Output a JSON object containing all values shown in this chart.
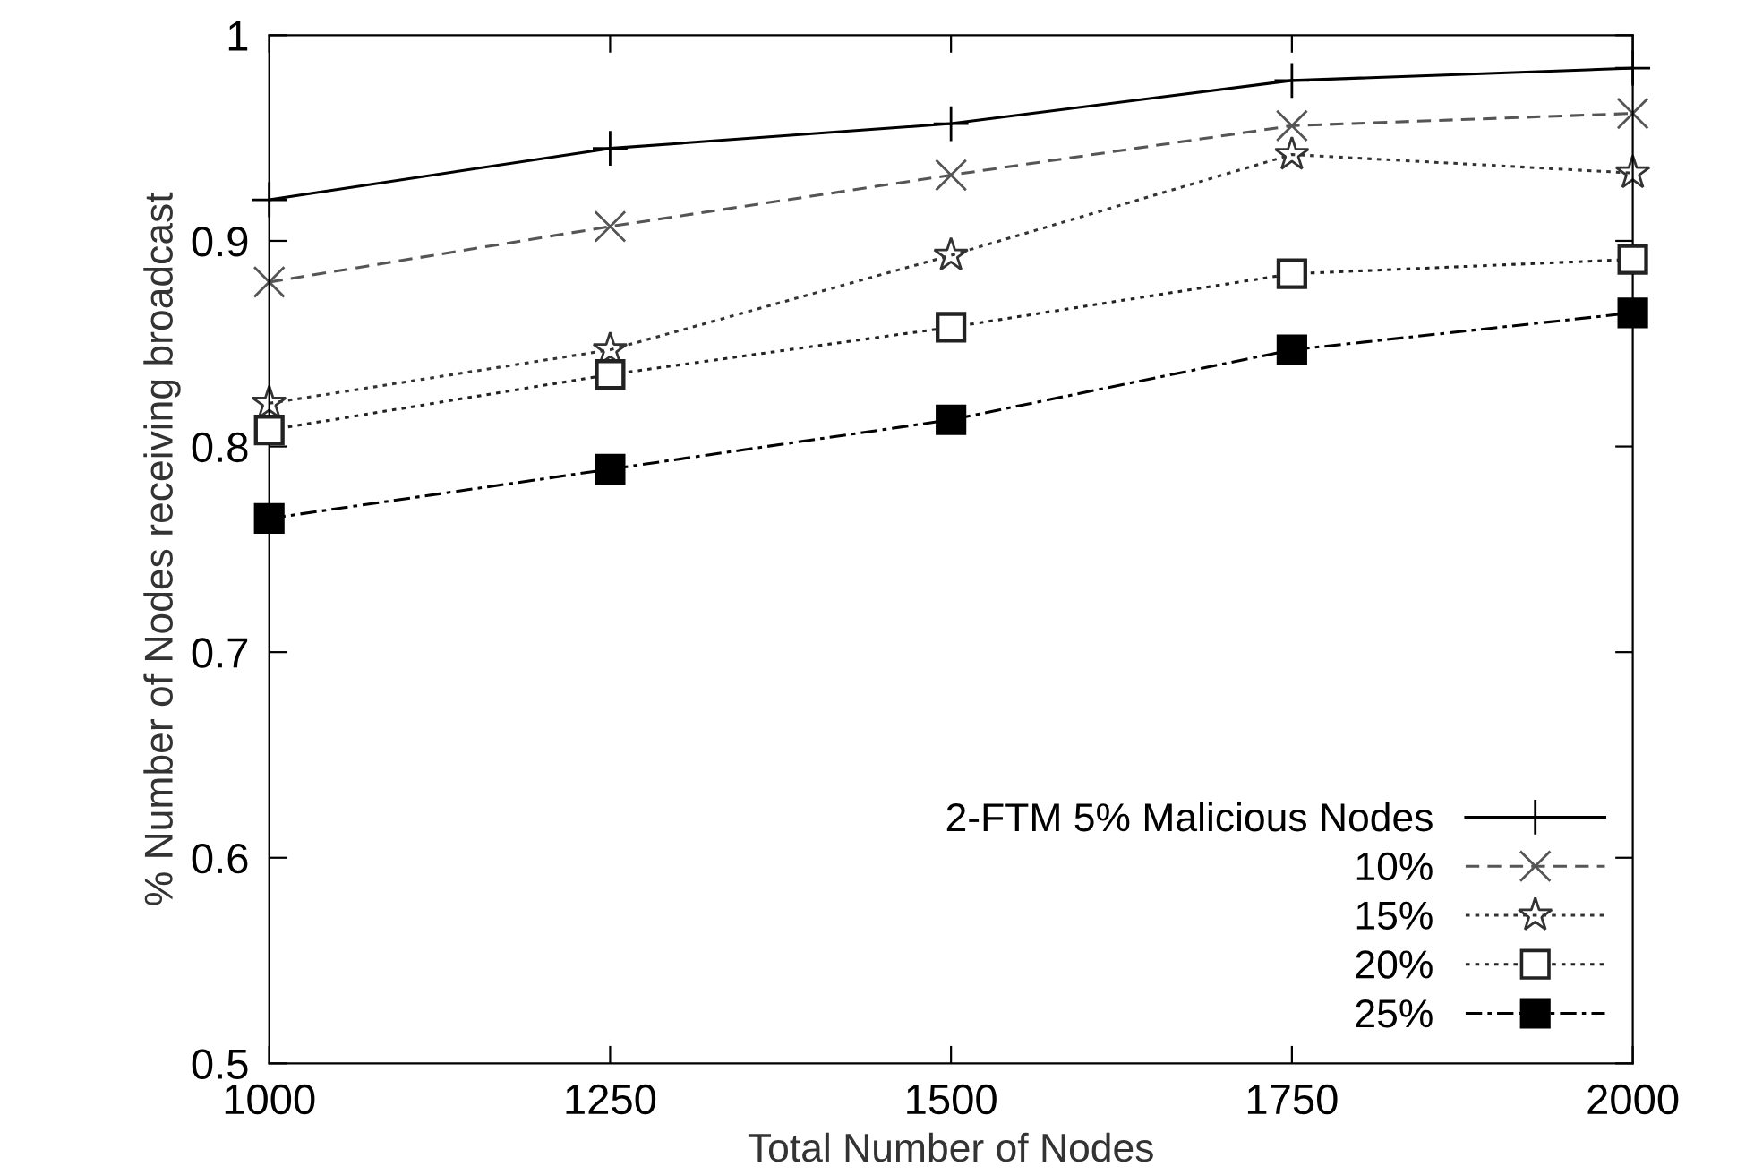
{
  "chart_data": {
    "type": "line",
    "xlabel": "Total Number of Nodes",
    "ylabel": "% Number of Nodes receiving broadcast",
    "x": [
      1000,
      1250,
      1500,
      1750,
      2000
    ],
    "series": [
      {
        "name": "2-FTM 5% Malicious Nodes",
        "color": "#000000",
        "marker": "plus",
        "line_style": "solid",
        "values": [
          0.92,
          0.945,
          0.957,
          0.978,
          0.984
        ]
      },
      {
        "name": "10%",
        "color": "#555555",
        "marker": "cross",
        "line_style": "dashed",
        "values": [
          0.88,
          0.907,
          0.932,
          0.956,
          0.962
        ]
      },
      {
        "name": "15%",
        "color": "#333333",
        "marker": "star",
        "line_style": "dotted",
        "values": [
          0.821,
          0.847,
          0.893,
          0.942,
          0.933
        ]
      },
      {
        "name": "20%",
        "color": "#222222",
        "marker": "square",
        "colors": [
          "#ffffff",
          "#ffffff",
          "#ffffff",
          "#ffffff",
          "#ffffff"
        ],
        "line_style": "dotted",
        "values": [
          0.808,
          0.835,
          0.858,
          0.884,
          0.891
        ]
      },
      {
        "name": "25%",
        "color": "#000000",
        "marker": "square",
        "line_style": "dashdot",
        "values": [
          0.765,
          0.789,
          0.813,
          0.847,
          0.865
        ]
      }
    ],
    "xlim": [
      1000,
      2000
    ],
    "xticks": [
      1000,
      1250,
      1500,
      1750,
      2000
    ],
    "ylim": [
      0.5,
      1
    ],
    "yticks": [
      0.5,
      0.6,
      0.7,
      0.8,
      0.9,
      1
    ],
    "grid": false,
    "legend": "bottom right"
  }
}
